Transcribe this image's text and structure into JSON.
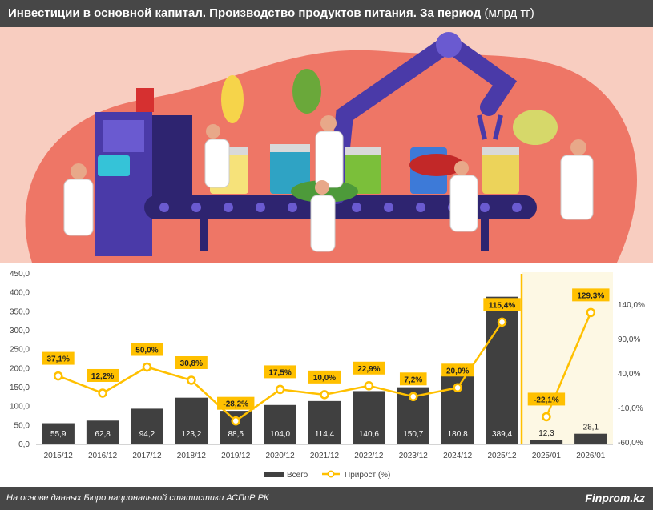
{
  "header": {
    "title_bold": "Инвестиции в основной капитал. Производство продуктов питания. За период",
    "title_unit": "(млрд тг)"
  },
  "footer": {
    "source": "На основе данных Бюро национальной статистики АСПиР РК",
    "brand": "Finprom.kz"
  },
  "illustration": {
    "icon": "food-production-conveyor-illustration"
  },
  "colors": {
    "bar": "#404040",
    "line": "#ffc000",
    "forecast_band": "#fdf8e4",
    "divider": "#ffc000",
    "label_box": "#ffc000",
    "illustration_bg": "#f8cdc0",
    "illustration_blob": "#ee7666"
  },
  "chart_data": {
    "type": "bar",
    "categories": [
      "2015/12",
      "2016/12",
      "2017/12",
      "2018/12",
      "2019/12",
      "2020/12",
      "2021/12",
      "2022/12",
      "2023/12",
      "2024/12",
      "2025/12",
      "2025/01",
      "2026/01"
    ],
    "series": [
      {
        "name": "Всего",
        "type": "bar",
        "axis": "left",
        "values": [
          55.9,
          62.8,
          94.2,
          123.2,
          88.5,
          104.0,
          114.4,
          140.6,
          150.7,
          180.8,
          389.4,
          12.3,
          28.1
        ],
        "labels": [
          "55,9",
          "62,8",
          "94,2",
          "123,2",
          "88,5",
          "104,0",
          "114,4",
          "140,6",
          "150,7",
          "180,8",
          "389,4",
          "12,3",
          "28,1"
        ]
      },
      {
        "name": "Прирост (%)",
        "type": "line",
        "axis": "right",
        "values": [
          37.1,
          12.2,
          50.0,
          30.8,
          -28.2,
          17.5,
          10.0,
          22.9,
          7.2,
          20.0,
          115.4,
          -22.1,
          129.3
        ],
        "labels": [
          "37,1%",
          "12,2%",
          "50,0%",
          "30,8%",
          "-28,2%",
          "17,5%",
          "10,0%",
          "22,9%",
          "7,2%",
          "20,0%",
          "115,4%",
          "-22,1%",
          "129,3%"
        ]
      }
    ],
    "y_left": {
      "range": [
        0,
        450
      ],
      "ticks": [
        "0,0",
        "50,0",
        "100,0",
        "150,0",
        "200,0",
        "250,0",
        "300,0",
        "350,0",
        "400,0",
        "450,0"
      ]
    },
    "y_right": {
      "range": [
        -60,
        160
      ],
      "ticks": [
        "-60,0%",
        "-10,0%",
        "40,0%",
        "90,0%",
        "140,0%"
      ],
      "tick_values": [
        -60,
        -10,
        40,
        90,
        140
      ]
    },
    "forecast_band_from_index": 11,
    "legend": [
      "Всего",
      "Прирост (%)"
    ],
    "legend_position": "bottom",
    "grid": false
  }
}
